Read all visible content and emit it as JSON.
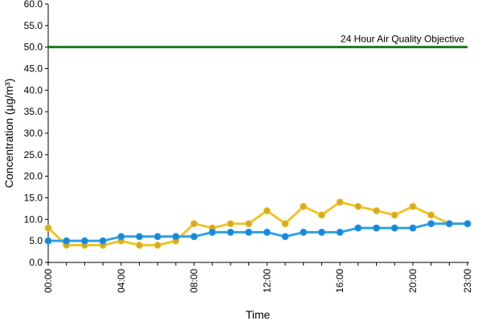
{
  "chart_data": {
    "type": "line",
    "xlabel": "Time",
    "ylabel": "Concentration (µg/m³)",
    "ylim": [
      0,
      60
    ],
    "yticks": [
      "0.0",
      "5.0",
      "10.0",
      "15.0",
      "20.0",
      "25.0",
      "30.0",
      "35.0",
      "40.0",
      "45.0",
      "50.0",
      "55.0",
      "60.0"
    ],
    "x_hours": [
      0,
      1,
      2,
      3,
      4,
      5,
      6,
      7,
      8,
      9,
      10,
      11,
      12,
      13,
      14,
      15,
      16,
      17,
      18,
      19,
      20,
      21,
      22,
      23
    ],
    "xtick_labels": [
      {
        "hour": 0,
        "label": "00:00"
      },
      {
        "hour": 4,
        "label": "04:00"
      },
      {
        "hour": 8,
        "label": "08:00"
      },
      {
        "hour": 12,
        "label": "12:00"
      },
      {
        "hour": 16,
        "label": "16:00"
      },
      {
        "hour": 20,
        "label": "20:00"
      },
      {
        "hour": 23,
        "label": "23:00"
      }
    ],
    "grid": false,
    "series": [
      {
        "color": "#f0c42a",
        "marker_color": "#d4aa2a",
        "values": [
          8,
          4,
          4,
          4,
          5,
          4,
          4,
          5,
          9,
          8,
          9,
          9,
          12,
          9,
          13,
          11,
          14,
          13,
          12,
          11,
          13,
          11,
          9,
          9
        ]
      },
      {
        "color": "#2ea1e6",
        "marker_color": "#1a86d4",
        "values": [
          5,
          5,
          5,
          5,
          6,
          6,
          6,
          6,
          6,
          7,
          7,
          7,
          7,
          6,
          7,
          7,
          7,
          8,
          8,
          8,
          8,
          9,
          9,
          9
        ]
      }
    ],
    "reference_line": {
      "value": 50,
      "label": "24 Hour Air Quality Objective",
      "color": "#1a7a1a"
    }
  }
}
